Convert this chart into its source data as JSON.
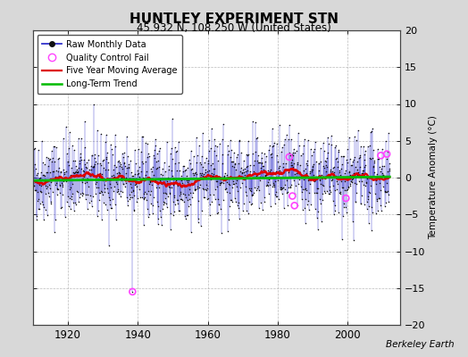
{
  "title": "HUNTLEY EXPERIMENT STN",
  "subtitle": "45.932 N, 108.250 W (United States)",
  "ylabel": "Temperature Anomaly (°C)",
  "credit": "Berkeley Earth",
  "xlim": [
    1910,
    2015
  ],
  "ylim": [
    -20,
    20
  ],
  "xticks": [
    1920,
    1940,
    1960,
    1980,
    2000
  ],
  "yticks": [
    -20,
    -15,
    -10,
    -5,
    0,
    5,
    10,
    15,
    20
  ],
  "background_color": "#d8d8d8",
  "plot_bg_color": "#ffffff",
  "raw_line_color": "#3333cc",
  "raw_dot_color": "#111111",
  "qc_fail_color": "#ff44ff",
  "moving_avg_color": "#dd0000",
  "trend_color": "#00bb00",
  "seed": 42,
  "start_year": 1910,
  "end_year": 2012,
  "months_per_year": 12,
  "trend_slope": 0.005,
  "trend_intercept": -0.15,
  "moving_avg_window": 60,
  "qc_fail_points": [
    {
      "year": 1938.5,
      "value": -15.5
    },
    {
      "year": 1983.3,
      "value": 2.8
    },
    {
      "year": 1984.2,
      "value": -2.5
    },
    {
      "year": 1984.8,
      "value": -3.8
    },
    {
      "year": 1999.5,
      "value": -2.8
    },
    {
      "year": 2009.5,
      "value": 3.0
    },
    {
      "year": 2011.2,
      "value": 3.2
    }
  ]
}
